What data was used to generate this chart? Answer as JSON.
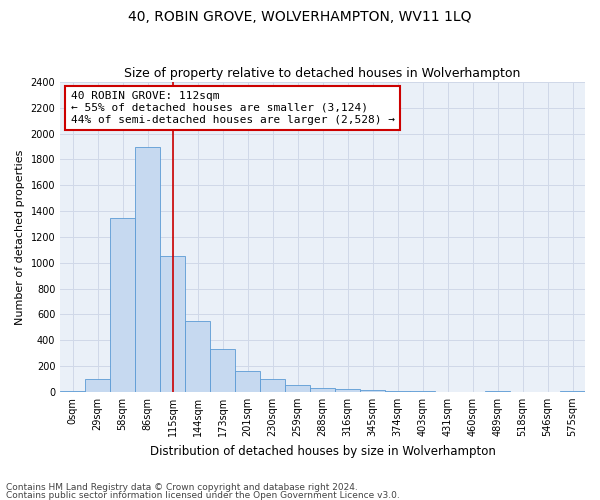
{
  "title": "40, ROBIN GROVE, WOLVERHAMPTON, WV11 1LQ",
  "subtitle": "Size of property relative to detached houses in Wolverhampton",
  "xlabel": "Distribution of detached houses by size in Wolverhampton",
  "ylabel": "Number of detached properties",
  "categories": [
    "0sqm",
    "29sqm",
    "58sqm",
    "86sqm",
    "115sqm",
    "144sqm",
    "173sqm",
    "201sqm",
    "230sqm",
    "259sqm",
    "288sqm",
    "316sqm",
    "345sqm",
    "374sqm",
    "403sqm",
    "431sqm",
    "460sqm",
    "489sqm",
    "518sqm",
    "546sqm",
    "575sqm"
  ],
  "bar_heights": [
    10,
    100,
    1350,
    1900,
    1050,
    550,
    330,
    160,
    100,
    50,
    30,
    20,
    15,
    5,
    5,
    2,
    2,
    5,
    0,
    2,
    5
  ],
  "bar_color": "#c6d9f0",
  "bar_edge_color": "#5b9bd5",
  "grid_color": "#d0d8e8",
  "plot_bg_color": "#eaf0f8",
  "background_color": "#ffffff",
  "vline_x": 4,
  "vline_color": "#cc0000",
  "annotation_line1": "40 ROBIN GROVE: 112sqm",
  "annotation_line2": "← 55% of detached houses are smaller (3,124)",
  "annotation_line3": "44% of semi-detached houses are larger (2,528) →",
  "annotation_box_color": "#ffffff",
  "annotation_box_edge_color": "#cc0000",
  "ylim": [
    0,
    2400
  ],
  "yticks": [
    0,
    200,
    400,
    600,
    800,
    1000,
    1200,
    1400,
    1600,
    1800,
    2000,
    2200,
    2400
  ],
  "footnote1": "Contains HM Land Registry data © Crown copyright and database right 2024.",
  "footnote2": "Contains public sector information licensed under the Open Government Licence v3.0.",
  "title_fontsize": 10,
  "subtitle_fontsize": 9,
  "xlabel_fontsize": 8.5,
  "ylabel_fontsize": 8,
  "tick_fontsize": 7,
  "annotation_fontsize": 8,
  "footnote_fontsize": 6.5
}
